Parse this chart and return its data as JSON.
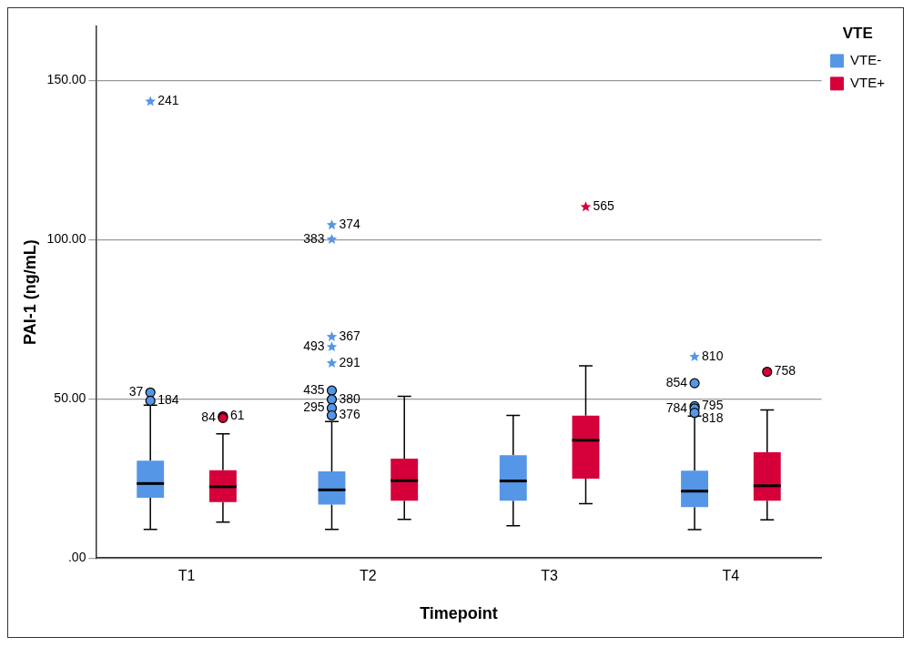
{
  "chart_data": {
    "type": "box",
    "xlabel": "Timepoint",
    "ylabel": "PAI-1 (ng/mL)",
    "legend_title": "VTE",
    "legend": "top right",
    "grid": "y",
    "categories": [
      "T1",
      "T2",
      "T3",
      "T4"
    ],
    "ylim": [
      0,
      167
    ],
    "yticks": [
      {
        "value": 0,
        "label": ".00"
      },
      {
        "value": 50,
        "label": "50.00"
      },
      {
        "value": 100,
        "label": "100.00"
      },
      {
        "value": 150,
        "label": "150.00"
      }
    ],
    "series": [
      {
        "name": "VTE-",
        "color": "#5596e6",
        "type": "box",
        "boxes": [
          {
            "low": 9.0,
            "q1": 18.9,
            "median": 23.4,
            "q3": 30.6,
            "high": 48.0
          },
          {
            "low": 9.0,
            "q1": 16.8,
            "median": 21.4,
            "q3": 27.2,
            "high": 42.9
          },
          {
            "low": 10.1,
            "q1": 18.0,
            "median": 24.2,
            "q3": 32.3,
            "high": 44.8
          },
          {
            "low": 8.9,
            "q1": 16.0,
            "median": 21.0,
            "q3": 27.4,
            "high": 44.6
          }
        ]
      },
      {
        "name": "VTE+",
        "color": "#d5003a",
        "type": "box",
        "boxes": [
          {
            "low": 11.3,
            "q1": 17.6,
            "median": 22.4,
            "q3": 27.6,
            "high": 39.0
          },
          {
            "low": 12.1,
            "q1": 18.0,
            "median": 24.3,
            "q3": 31.2,
            "high": 50.8
          },
          {
            "low": 17.1,
            "q1": 24.9,
            "median": 37.0,
            "q3": 44.7,
            "high": 60.4
          },
          {
            "low": 12.0,
            "q1": 18.0,
            "median": 22.7,
            "q3": 33.2,
            "high": 46.5
          }
        ]
      },
      {
        "type": "scatter",
        "marker": "circle",
        "color": "#5596e6",
        "x": [
          "T1",
          "T1",
          "T2",
          "T2",
          "T2",
          "T2",
          "T4",
          "T4",
          "T4",
          "T4"
        ],
        "values": [
          52.0,
          49.4,
          52.6,
          49.8,
          47.1,
          44.8,
          54.9,
          47.7,
          47.0,
          45.6
        ]
      },
      {
        "type": "scatter",
        "marker": "star",
        "color": "#5596e6",
        "x": [
          "T1",
          "T2",
          "T2",
          "T2",
          "T2",
          "T2",
          "T4"
        ],
        "values": [
          143.4,
          104.6,
          100.1,
          69.5,
          66.3,
          61.2,
          63.2
        ]
      },
      {
        "type": "scatter",
        "marker": "circle",
        "color": "#d5003a",
        "x": [
          "T1",
          "T1",
          "T4"
        ],
        "values": [
          44.5,
          44.0,
          58.5
        ]
      },
      {
        "type": "scatter",
        "marker": "star",
        "color": "#d5003a",
        "x": [
          "T3"
        ],
        "values": [
          110.3
        ]
      }
    ],
    "annotations": [
      "37",
      "184",
      "435",
      "380",
      "295",
      "376",
      "854",
      "795",
      "784",
      "818",
      "241",
      "374",
      "383",
      "367",
      "493",
      "291",
      "810",
      "61",
      "84",
      "758",
      "565"
    ]
  }
}
